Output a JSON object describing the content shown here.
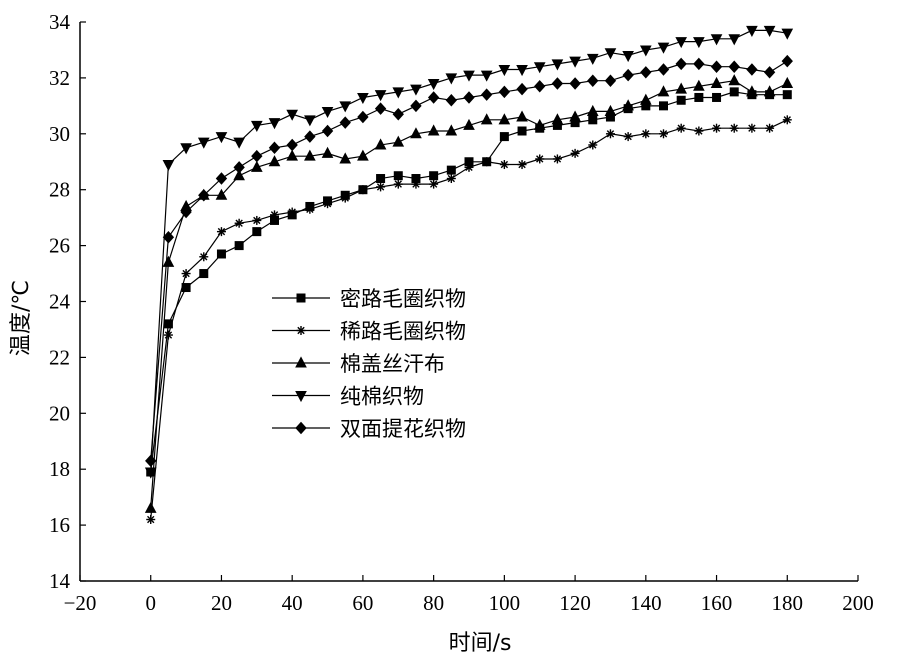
{
  "chart_data": {
    "type": "line",
    "title": "",
    "xlabel": "时间/s",
    "ylabel": "温度/℃",
    "xlim": [
      -20,
      200
    ],
    "ylim": [
      14,
      34
    ],
    "xticks": [
      -20,
      0,
      20,
      40,
      60,
      80,
      100,
      120,
      140,
      160,
      180,
      200
    ],
    "yticks": [
      14,
      16,
      18,
      20,
      22,
      24,
      26,
      28,
      30,
      32,
      34
    ],
    "xtick_labels": [
      "−20",
      "0",
      "20",
      "40",
      "60",
      "80",
      "100",
      "120",
      "140",
      "160",
      "180",
      "200"
    ],
    "ytick_labels": [
      "14",
      "16",
      "18",
      "20",
      "22",
      "24",
      "26",
      "28",
      "30",
      "32",
      "34"
    ],
    "grid": false,
    "legend_position": "center-left",
    "x": [
      0,
      5,
      10,
      15,
      20,
      25,
      30,
      35,
      40,
      45,
      50,
      55,
      60,
      65,
      70,
      75,
      80,
      85,
      90,
      95,
      100,
      105,
      110,
      115,
      120,
      125,
      130,
      135,
      140,
      145,
      150,
      155,
      160,
      165,
      170,
      175,
      180
    ],
    "series": [
      {
        "name": "密路毛圈织物",
        "marker": "square",
        "values": [
          17.9,
          23.2,
          24.5,
          25.0,
          25.7,
          26.0,
          26.5,
          26.9,
          27.1,
          27.4,
          27.6,
          27.8,
          28.0,
          28.4,
          28.5,
          28.4,
          28.5,
          28.7,
          29.0,
          29.0,
          29.9,
          30.1,
          30.2,
          30.3,
          30.4,
          30.5,
          30.6,
          30.9,
          31.0,
          31.0,
          31.2,
          31.3,
          31.3,
          31.5,
          31.4,
          31.4,
          31.4
        ]
      },
      {
        "name": "稀路毛圈织物",
        "marker": "asterisk",
        "values": [
          16.2,
          22.8,
          25.0,
          25.6,
          26.5,
          26.8,
          26.9,
          27.1,
          27.2,
          27.3,
          27.5,
          27.7,
          28.0,
          28.1,
          28.2,
          28.2,
          28.2,
          28.4,
          28.8,
          29.0,
          28.9,
          28.9,
          29.1,
          29.1,
          29.3,
          29.6,
          30.0,
          29.9,
          30.0,
          30.0,
          30.2,
          30.1,
          30.2,
          30.2,
          30.2,
          30.2,
          30.5
        ]
      },
      {
        "name": "棉盖丝汗布",
        "marker": "triangle-up",
        "values": [
          16.6,
          25.4,
          27.4,
          27.8,
          27.8,
          28.5,
          28.8,
          29.0,
          29.2,
          29.2,
          29.3,
          29.1,
          29.2,
          29.6,
          29.7,
          30.0,
          30.1,
          30.1,
          30.3,
          30.5,
          30.5,
          30.6,
          30.3,
          30.5,
          30.6,
          30.8,
          30.8,
          31.0,
          31.2,
          31.5,
          31.6,
          31.7,
          31.8,
          31.9,
          31.5,
          31.5,
          31.8
        ]
      },
      {
        "name": "纯棉织物",
        "marker": "triangle-down",
        "values": [
          17.9,
          28.9,
          29.5,
          29.7,
          29.9,
          29.7,
          30.3,
          30.4,
          30.7,
          30.5,
          30.8,
          31.0,
          31.3,
          31.4,
          31.5,
          31.6,
          31.8,
          32.0,
          32.1,
          32.1,
          32.3,
          32.3,
          32.4,
          32.5,
          32.6,
          32.7,
          32.9,
          32.8,
          33.0,
          33.1,
          33.3,
          33.3,
          33.4,
          33.4,
          33.7,
          33.7,
          33.6
        ]
      },
      {
        "name": "双面提花织物",
        "marker": "diamond",
        "values": [
          18.3,
          26.3,
          27.2,
          27.8,
          28.4,
          28.8,
          29.2,
          29.5,
          29.6,
          29.9,
          30.1,
          30.4,
          30.6,
          30.9,
          30.7,
          31.0,
          31.3,
          31.2,
          31.3,
          31.4,
          31.5,
          31.6,
          31.7,
          31.8,
          31.8,
          31.9,
          31.9,
          32.1,
          32.2,
          32.3,
          32.5,
          32.5,
          32.4,
          32.4,
          32.3,
          32.2,
          32.6
        ]
      }
    ]
  }
}
